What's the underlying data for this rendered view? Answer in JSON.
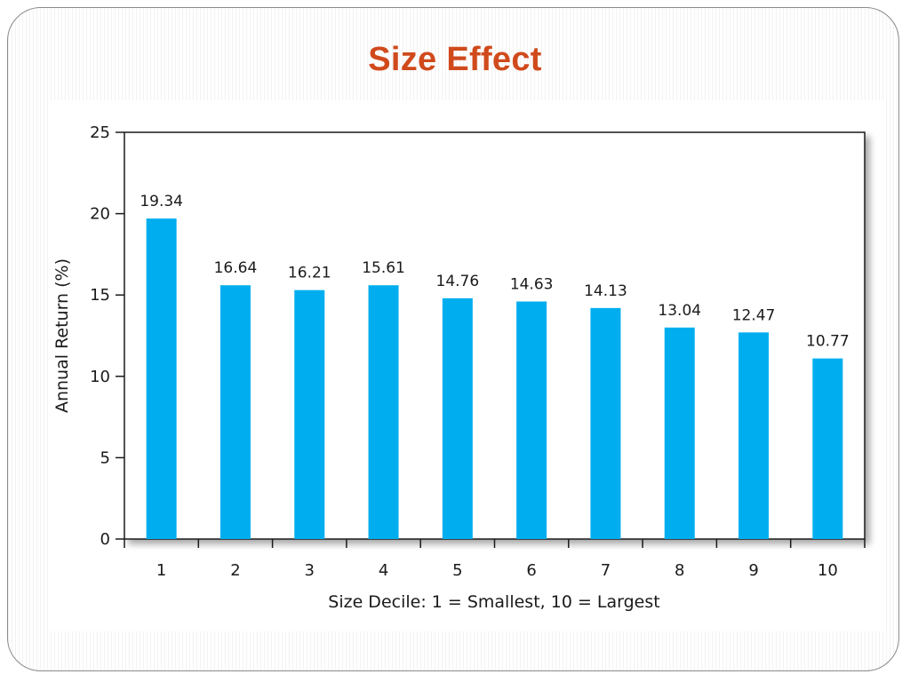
{
  "slide": {
    "title": "Size Effect"
  },
  "colors": {
    "title": "#d04a1c",
    "bar": "#00aeef",
    "axis": "#1a1a1a",
    "frame_border": "#8a8a8a"
  },
  "chart_data": {
    "type": "bar",
    "categories": [
      "1",
      "2",
      "3",
      "4",
      "5",
      "6",
      "7",
      "8",
      "9",
      "10"
    ],
    "values": [
      19.34,
      16.64,
      16.21,
      15.61,
      14.76,
      14.63,
      14.13,
      13.04,
      12.47,
      10.77
    ],
    "bar_heights": [
      19.7,
      15.6,
      15.3,
      15.6,
      14.8,
      14.6,
      14.2,
      13.0,
      12.7,
      11.1
    ],
    "data_labels": [
      "19.34",
      "16.64",
      "16.21",
      "15.61",
      "14.76",
      "14.63",
      "14.13",
      "13.04",
      "12.47",
      "10.77"
    ],
    "xlabel": "Size Decile: 1 = Smallest, 10 = Largest",
    "ylabel": "Annual Return (%)",
    "ylim": [
      0,
      25
    ],
    "yticks": [
      0,
      5,
      10,
      15,
      20,
      25
    ],
    "grid": false,
    "legend": "none"
  }
}
